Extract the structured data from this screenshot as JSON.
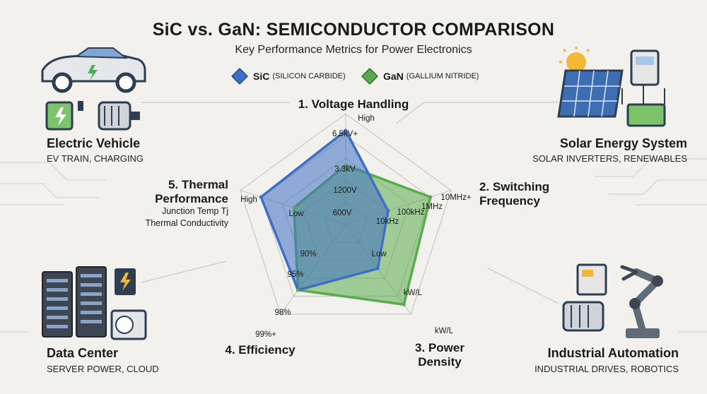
{
  "title": "SiC vs. GaN: SEMICONDUCTOR COMPARISON",
  "subtitle": "Key Performance Metrics for Power Electronics",
  "legend": [
    {
      "name": "SiC",
      "sub": "(SILICON CARBIDE)",
      "color": "#3f6fc4"
    },
    {
      "name": "GaN",
      "sub": "(GALLIUM NITRIDE)",
      "color": "#5aab4e"
    }
  ],
  "applications": {
    "ev": {
      "title": "Electric Vehicle",
      "subtitle": "EV TRAIN, CHARGING"
    },
    "solar": {
      "title": "Solar Energy System",
      "subtitle": "SOLAR INVERTERS, RENEWABLES"
    },
    "datacenter": {
      "title": "Data Center",
      "subtitle": "SERVER POWER, CLOUD"
    },
    "industrial": {
      "title": "Industrial Automation",
      "subtitle": "INDUSTRIAL DRIVES, ROBOTICS"
    }
  },
  "chart_data": {
    "type": "radar",
    "title": "SiC vs. GaN: SEMICONDUCTOR COMPARISON",
    "subtitle": "Key Performance Metrics for Power Electronics",
    "scale_max": 1.0,
    "grid_levels": 5,
    "axes": [
      {
        "label_lines": [
          "1. Voltage Handling"
        ],
        "extra_labels": [
          "High"
        ],
        "ticks": [
          "6.5kV+",
          "3.3kV",
          "1200V",
          "600V"
        ]
      },
      {
        "label_lines": [
          "2. Switching",
          "Frequency"
        ],
        "extra_labels": [],
        "ticks": [
          "10MHz+",
          "1MHz",
          "100kHz",
          "10kHz"
        ]
      },
      {
        "label_lines": [
          "3. Power",
          "Density"
        ],
        "extra_labels": [],
        "ticks": [
          "kW/L",
          "kW/L",
          "Low"
        ]
      },
      {
        "label_lines": [
          "4. Efficiency"
        ],
        "extra_labels": [],
        "ticks": [
          "99%+",
          "98%",
          "95%",
          "90%"
        ]
      },
      {
        "label_lines": [
          "5. Thermal",
          "Performance"
        ],
        "extra_labels": [
          "Junction Temp Tj",
          "Thermal Conductivity"
        ],
        "ticks": [
          "High",
          "Low"
        ]
      }
    ],
    "series": [
      {
        "name": "SiC",
        "color": "#3f6fc4",
        "values": [
          0.95,
          0.45,
          0.55,
          0.82,
          0.9
        ]
      },
      {
        "name": "GaN",
        "color": "#5aab4e",
        "values": [
          0.6,
          0.9,
          1.0,
          0.82,
          0.55
        ]
      }
    ]
  }
}
